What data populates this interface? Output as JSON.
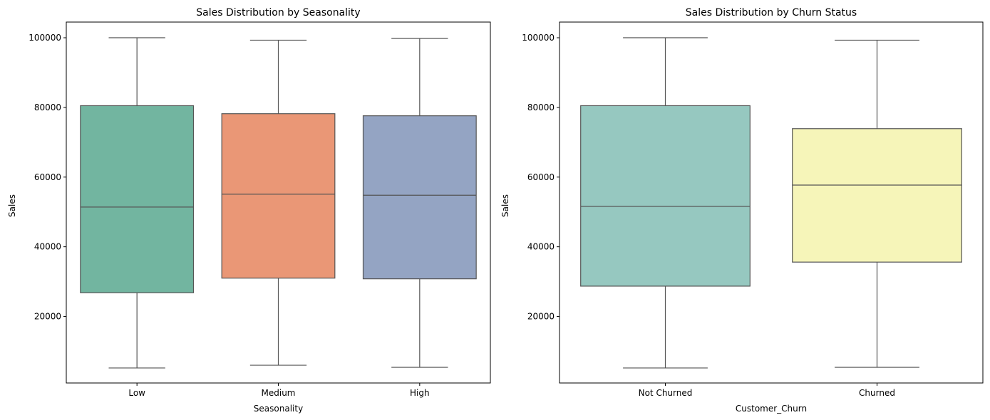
{
  "chart_data": [
    {
      "type": "box",
      "title": "Sales Distribution by Seasonality",
      "xlabel": "Seasonality",
      "ylabel": "Sales",
      "ylim": [
        900,
        104500
      ],
      "yticks": [
        20000,
        40000,
        60000,
        80000,
        100000
      ],
      "categories": [
        "Low",
        "Medium",
        "High"
      ],
      "colors": [
        "#72b5a0",
        "#ea9776",
        "#94a4c3"
      ],
      "boxes": [
        {
          "min": 5200,
          "q1": 26800,
          "median": 51400,
          "q3": 80500,
          "max": 100000
        },
        {
          "min": 6000,
          "q1": 31000,
          "median": 55100,
          "q3": 78200,
          "max": 99300
        },
        {
          "min": 5400,
          "q1": 30800,
          "median": 54800,
          "q3": 77600,
          "max": 99800
        }
      ]
    },
    {
      "type": "box",
      "title": "Sales Distribution by Churn Status",
      "xlabel": "Customer_Churn",
      "ylabel": "Sales",
      "ylim": [
        900,
        104500
      ],
      "yticks": [
        20000,
        40000,
        60000,
        80000,
        100000
      ],
      "categories": [
        "Not Churned",
        "Churned"
      ],
      "colors": [
        "#96c8c0",
        "#f6f5b9"
      ],
      "boxes": [
        {
          "min": 5200,
          "q1": 28700,
          "median": 51600,
          "q3": 80500,
          "max": 100000
        },
        {
          "min": 5400,
          "q1": 35600,
          "median": 57700,
          "q3": 73900,
          "max": 99300
        }
      ]
    }
  ]
}
